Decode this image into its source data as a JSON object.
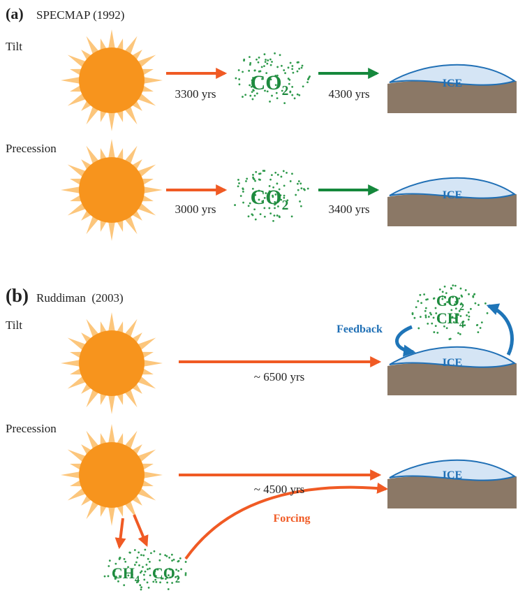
{
  "panels": [
    {
      "label": "(a)",
      "title": "SPECMAP (1992)",
      "rows": [
        {
          "name": "Tilt",
          "lag1": "3300 yrs",
          "gas": {
            "base": "CO",
            "sub": "2"
          },
          "lag2": "4300 yrs",
          "ice": "ICE"
        },
        {
          "name": "Precession",
          "lag1": "3000 yrs",
          "gas": {
            "base": "CO",
            "sub": "2"
          },
          "lag2": "3400 yrs",
          "ice": "ICE"
        }
      ]
    },
    {
      "label": "(b)",
      "title": "Ruddiman  (2003)",
      "rows": [
        {
          "name": "Tilt",
          "lag": "~ 6500 yrs",
          "ice": "ICE",
          "feedback": "Feedback",
          "gases": [
            {
              "base": "CO",
              "sub": "2"
            },
            {
              "base": "CH",
              "sub": "4"
            }
          ]
        },
        {
          "name": "Precession",
          "lag": "~ 4500 yrs",
          "ice": "ICE",
          "forcing": "Forcing",
          "gases": [
            {
              "base": "CH",
              "sub": "4"
            },
            {
              "base": "CO",
              "sub": "2"
            }
          ]
        }
      ]
    }
  ]
}
